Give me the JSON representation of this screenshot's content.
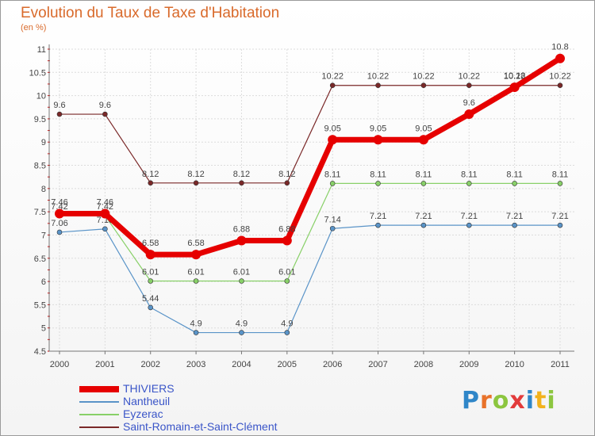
{
  "title": "Evolution du Taux de Taxe d'Habitation",
  "subtitle": "(en %)",
  "brand": {
    "text": "Proxiti",
    "letters": [
      {
        "ch": "P",
        "color": "#2f86c8"
      },
      {
        "ch": "r",
        "color": "#e8722a"
      },
      {
        "ch": "o",
        "color": "#8cc63f"
      },
      {
        "ch": "x",
        "color": "#e23b3b"
      },
      {
        "ch": "i",
        "color": "#2f86c8"
      },
      {
        "ch": "t",
        "color": "#f2b21c"
      },
      {
        "ch": "i",
        "color": "#8cc63f"
      }
    ]
  },
  "chart_data": {
    "type": "line",
    "x": [
      "2000",
      "2001",
      "2002",
      "2003",
      "2004",
      "2005",
      "2006",
      "2007",
      "2008",
      "2009",
      "2010",
      "2011"
    ],
    "ylim": [
      4.5,
      11
    ],
    "yticks": [
      "4.5",
      "5",
      "5.5",
      "6",
      "6.5",
      "7",
      "7.5",
      "8",
      "8.5",
      "9",
      "9.5",
      "10",
      "10.5",
      "11"
    ],
    "grid": true,
    "legend_position": "bottom-left",
    "series": [
      {
        "name": "Saint-Romain-et-Saint-Clément",
        "color": "#7a2828",
        "width": 1.2,
        "values": [
          9.6,
          9.6,
          8.12,
          8.12,
          8.12,
          8.12,
          10.22,
          10.22,
          10.22,
          10.22,
          10.22,
          10.22
        ],
        "labels": [
          "9.6",
          "9.6",
          "8.12",
          "8.12",
          "8.12",
          "8.12",
          "10.22",
          "10.22",
          "10.22",
          "10.22",
          "10.22",
          "10.22"
        ]
      },
      {
        "name": "Eyzerac",
        "color": "#88d068",
        "width": 1.2,
        "values": [
          7.42,
          7.42,
          6.01,
          6.01,
          6.01,
          6.01,
          8.11,
          8.11,
          8.11,
          8.11,
          8.11,
          8.11
        ],
        "labels": [
          "7.42",
          "7.42",
          "6.01",
          "6.01",
          "6.01",
          "6.01",
          "8.11",
          "8.11",
          "8.11",
          "8.11",
          "8.11",
          "8.11"
        ]
      },
      {
        "name": "Nantheuil",
        "color": "#5a94c8",
        "width": 1.2,
        "values": [
          7.06,
          7.13,
          5.44,
          4.9,
          4.9,
          4.9,
          7.14,
          7.21,
          7.21,
          7.21,
          7.21,
          7.21
        ],
        "labels": [
          "7.06",
          "7.13",
          "5.44",
          "4.9",
          "4.9",
          "4.9",
          "7.14",
          "7.21",
          "7.21",
          "7.21",
          "7.21",
          "7.21"
        ]
      },
      {
        "name": "THIVIERS",
        "color": "#e60000",
        "width": 7,
        "values": [
          7.46,
          7.46,
          6.58,
          6.58,
          6.88,
          6.88,
          9.05,
          9.05,
          9.05,
          9.6,
          10.18,
          10.8
        ],
        "labels": [
          "7.46",
          "7.46",
          "6.58",
          "6.58",
          "6.88",
          "6.88",
          "9.05",
          "9.05",
          "9.05",
          "9.6",
          "10.18",
          "10.8"
        ]
      }
    ],
    "legend_order": [
      "THIVIERS",
      "Nantheuil",
      "Eyzerac",
      "Saint-Romain-et-Saint-Clément"
    ]
  }
}
